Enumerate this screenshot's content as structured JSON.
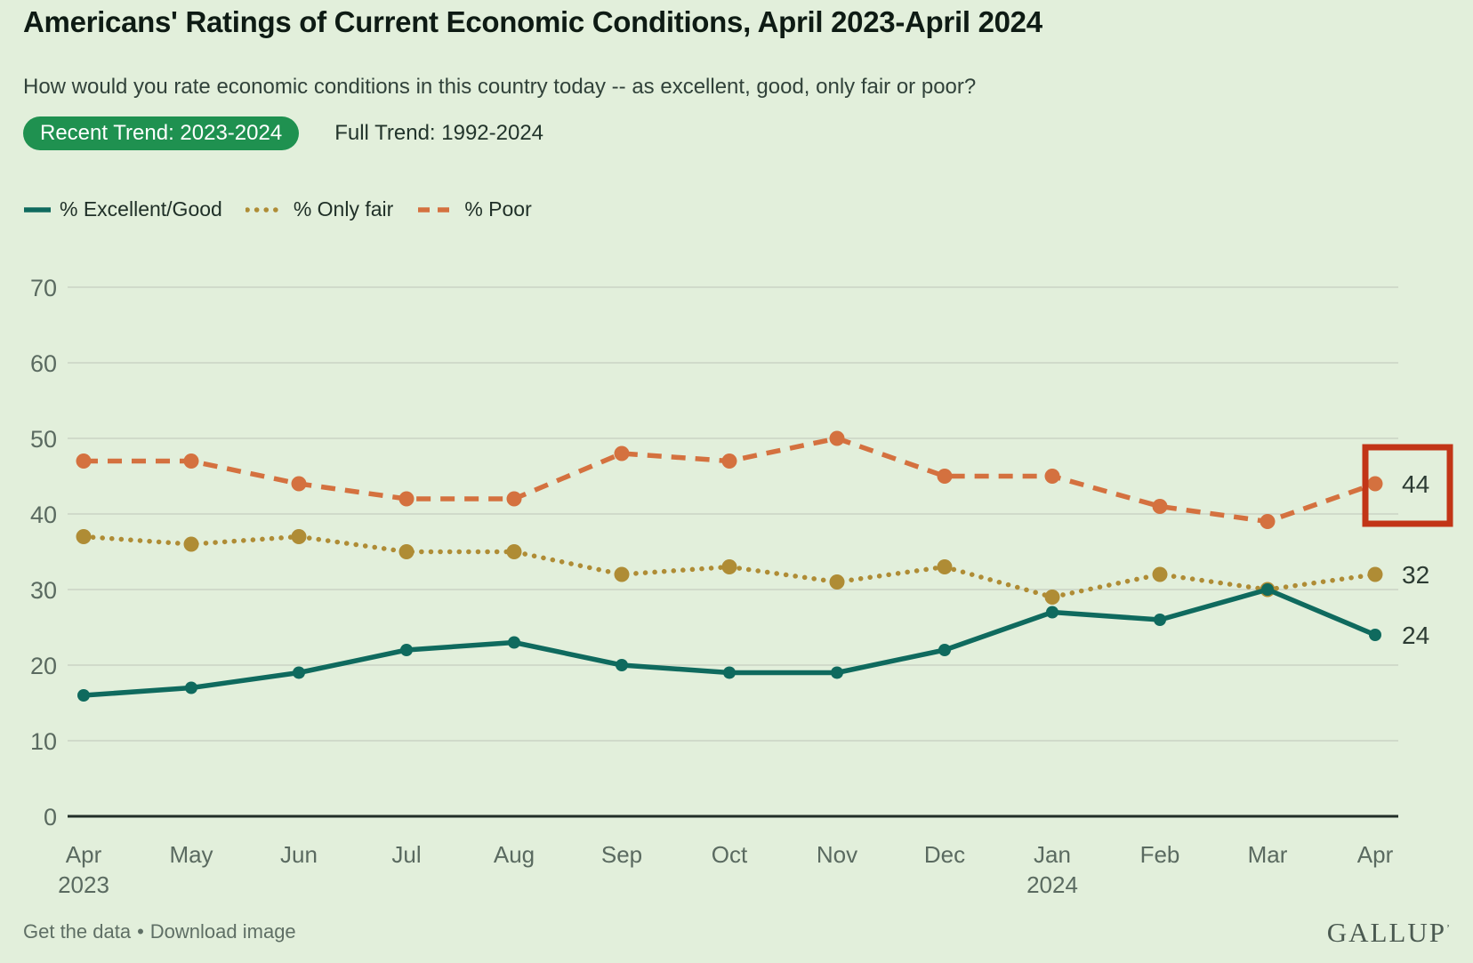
{
  "header": {
    "title": "Americans' Ratings of Current Economic Conditions, April 2023-April 2024",
    "question": "How would you rate economic conditions in this country today -- as excellent, good, only fair or poor?",
    "tabs": [
      {
        "label": "Recent Trend: 2023-2024",
        "active": true
      },
      {
        "label": "Full Trend: 1992-2024",
        "active": false
      }
    ]
  },
  "chart_data": {
    "type": "line",
    "title": "Americans' Ratings of Current Economic Conditions, April 2023-April 2024",
    "categories": [
      {
        "label": "Apr",
        "sub": "2023"
      },
      {
        "label": "May"
      },
      {
        "label": "Jun"
      },
      {
        "label": "Jul"
      },
      {
        "label": "Aug"
      },
      {
        "label": "Sep"
      },
      {
        "label": "Oct"
      },
      {
        "label": "Nov"
      },
      {
        "label": "Dec"
      },
      {
        "label": "Jan",
        "sub": "2024"
      },
      {
        "label": "Feb"
      },
      {
        "label": "Mar"
      },
      {
        "label": "Apr"
      }
    ],
    "series": [
      {
        "name": "% Excellent/Good",
        "style": "solid",
        "color": "#0f6a5e",
        "values": [
          16,
          17,
          19,
          22,
          23,
          20,
          19,
          19,
          22,
          27,
          26,
          30,
          24
        ],
        "end_label": "24"
      },
      {
        "name": "% Only fair",
        "style": "dotted",
        "color": "#af8c35",
        "values": [
          37,
          36,
          37,
          35,
          35,
          32,
          33,
          31,
          33,
          29,
          32,
          30,
          32
        ],
        "end_label": "32"
      },
      {
        "name": "% Poor",
        "style": "dashed",
        "color": "#d4713f",
        "values": [
          47,
          47,
          44,
          42,
          42,
          48,
          47,
          50,
          45,
          45,
          41,
          39,
          44
        ],
        "end_label": "44"
      }
    ],
    "ylim": [
      0,
      70
    ],
    "yticks": [
      0,
      10,
      20,
      30,
      40,
      50,
      60,
      70
    ],
    "grid": true,
    "legend_position": "top-left",
    "annotation": {
      "shape": "rectangle",
      "color": "#c23517",
      "series": "% Poor",
      "point_index": 12,
      "highlighted_value": "44"
    }
  },
  "footer": {
    "links": [
      "Get the data",
      "Download image"
    ],
    "separator": "•",
    "brand": "GALLUP",
    "brand_mark": "’"
  },
  "colors": {
    "background": "#e2efdb",
    "badge_green": "#1f9150",
    "axis_text": "#5a6a60",
    "grid_line": "#c9d3c4",
    "axis_line": "#212e27",
    "end_label_text": "#2c3b33",
    "annotation_red": "#c23517"
  }
}
